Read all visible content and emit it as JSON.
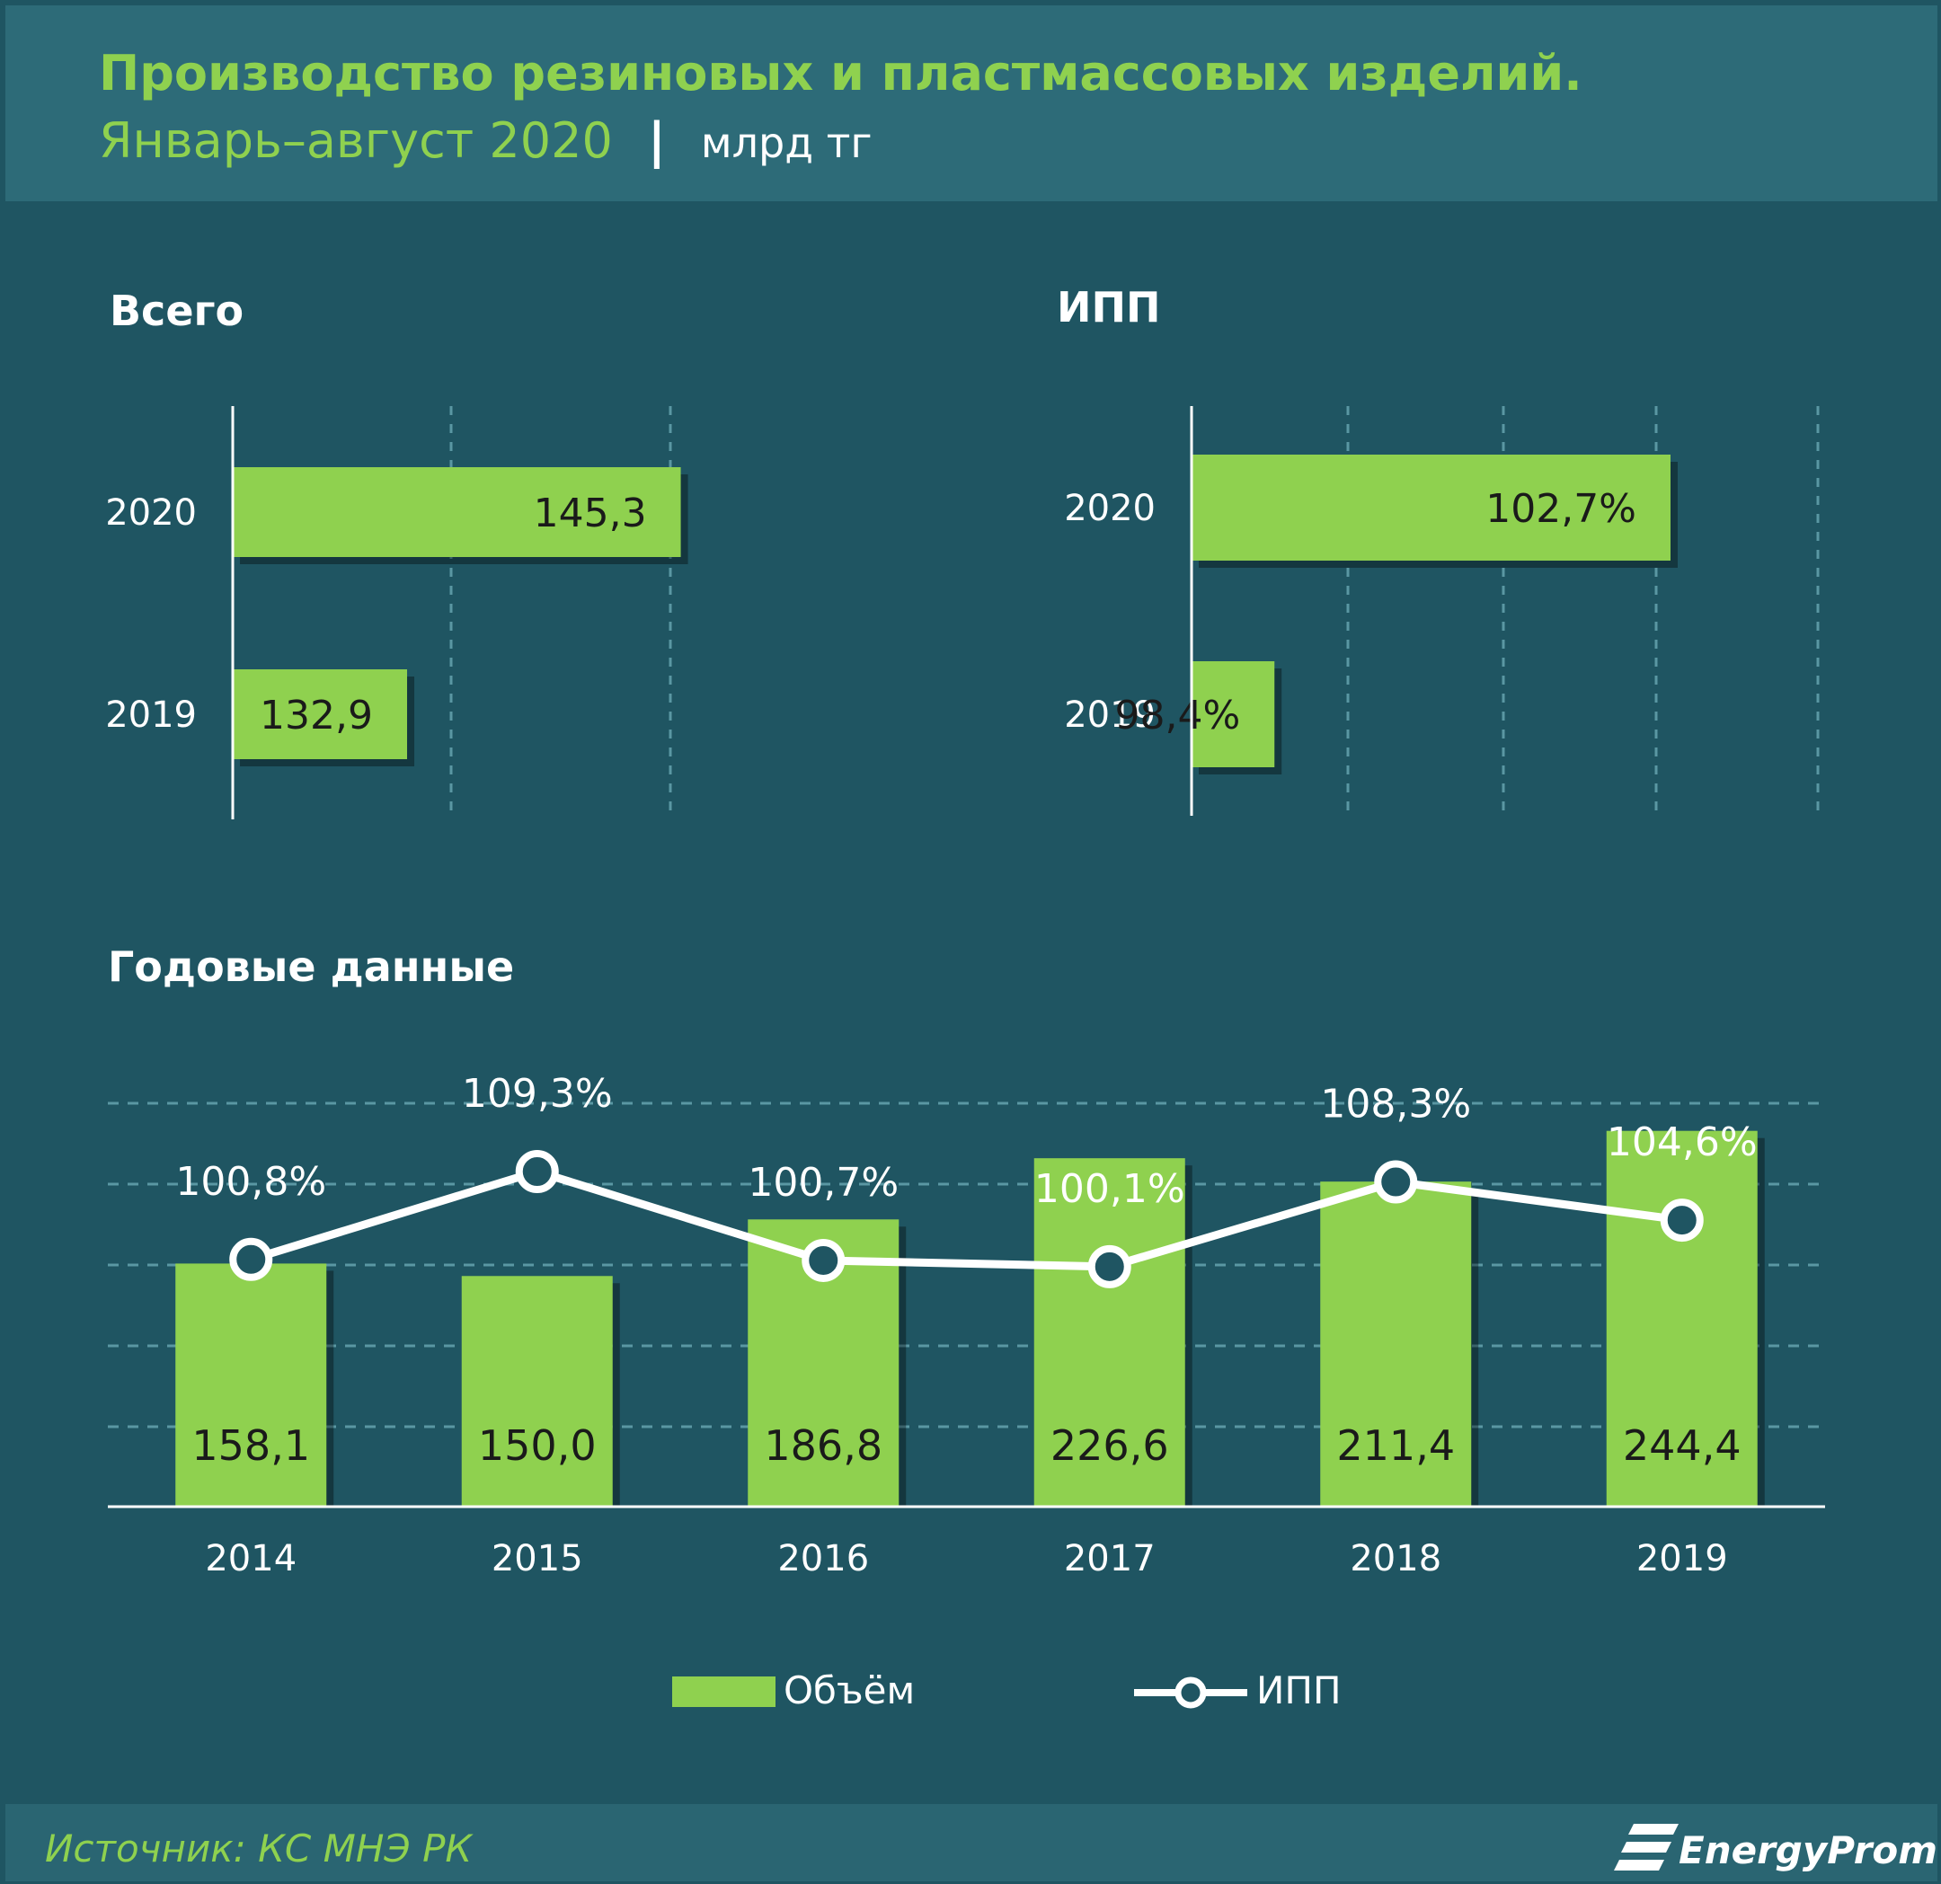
{
  "header": {
    "title_line1": "Производство резиновых и пластмассовых изделий.",
    "title_line2": "Январь–август 2020",
    "separator": "|",
    "unit": "млрд тг"
  },
  "colors": {
    "background": "#1f5562",
    "header_band": "#2d6b78",
    "footer_band": "#2a6572",
    "accent_green": "#8fd14f",
    "title_green": "#8fd14f",
    "line_white": "#ffffff",
    "grid": "#5a97a3",
    "label_dark": "#1a1a1a",
    "label_light": "#ffffff"
  },
  "chart_data": [
    {
      "type": "bar",
      "orientation": "horizontal",
      "title": "Всего",
      "categories": [
        "2020",
        "2019"
      ],
      "values": [
        145.3,
        132.9
      ],
      "value_labels": [
        "145,3",
        "132,9"
      ],
      "xlim": [
        125,
        150
      ],
      "grid": true
    },
    {
      "type": "bar",
      "orientation": "horizontal",
      "title": "ИПП",
      "categories": [
        "2020",
        "2019"
      ],
      "values": [
        102.7,
        98.4
      ],
      "value_labels": [
        "102,7%",
        "98,4%"
      ],
      "xlim": [
        97.5,
        103.5
      ],
      "grid": true
    },
    {
      "type": "bar+line",
      "title": "Годовые данные",
      "categories": [
        "2014",
        "2015",
        "2016",
        "2017",
        "2018",
        "2019"
      ],
      "series": [
        {
          "name": "Объём",
          "type": "bar",
          "values": [
            158.1,
            150.0,
            186.8,
            226.6,
            211.4,
            244.4
          ],
          "value_labels": [
            "158,1",
            "150,0",
            "186,8",
            "226,6",
            "211,4",
            "244,4"
          ]
        },
        {
          "name": "ИПП",
          "type": "line",
          "values": [
            100.8,
            109.3,
            100.7,
            100.1,
            108.3,
            104.6
          ],
          "value_labels": [
            "100,8%",
            "109,3%",
            "100,7%",
            "100,1%",
            "108,3%",
            "104,6%"
          ]
        }
      ],
      "ylim_bars": [
        0,
        260
      ],
      "legend": "bottom-center",
      "grid": true
    }
  ],
  "footer": {
    "source": "Источник: КС МНЭ РК",
    "brand": "EnergyProm"
  }
}
